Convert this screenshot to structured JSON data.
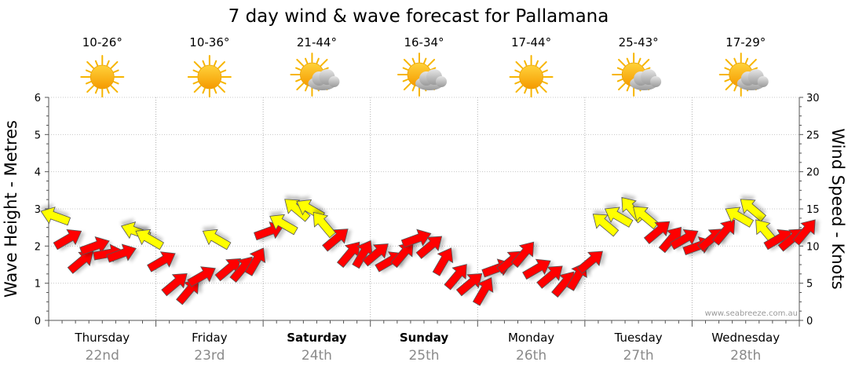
{
  "chart_data": {
    "type": "line",
    "title": "7 day wind & wave forecast for Pallamana",
    "ylabel_left": "Wave Height - Metres",
    "ylabel_right": "Wind Speed - Knots",
    "ylim_left": [
      0,
      6
    ],
    "ylim_right": [
      0,
      30
    ],
    "yticks_left": [
      "0",
      "1",
      "2",
      "3",
      "4",
      "5",
      "6"
    ],
    "yticks_right": [
      "0",
      "5",
      "10",
      "15",
      "20",
      "25",
      "30"
    ],
    "grid": true,
    "watermark": "www.seabreeze.com.au",
    "days": [
      {
        "day": "Thursday",
        "date": "22nd",
        "temp": "10-26°",
        "weather": "sunny",
        "bold": false
      },
      {
        "day": "Friday",
        "date": "23rd",
        "temp": "10-36°",
        "weather": "sunny",
        "bold": false
      },
      {
        "day": "Saturday",
        "date": "24th",
        "temp": "21-44°",
        "weather": "partly-cloudy",
        "bold": true
      },
      {
        "day": "Sunday",
        "date": "25th",
        "temp": "16-34°",
        "weather": "partly-cloudy",
        "bold": true
      },
      {
        "day": "Monday",
        "date": "26th",
        "temp": "17-44°",
        "weather": "sunny",
        "bold": false
      },
      {
        "day": "Tuesday",
        "date": "27th",
        "temp": "25-43°",
        "weather": "partly-cloudy",
        "bold": false
      },
      {
        "day": "Wednesday",
        "date": "28th",
        "temp": "17-29°",
        "weather": "partly-cloudy",
        "bold": false
      }
    ],
    "wind_series": {
      "name": "Wind",
      "x_hours": [
        0,
        3,
        6,
        9,
        12,
        15,
        18,
        21,
        24,
        27,
        30,
        33,
        36,
        39,
        42,
        45,
        48,
        51,
        54,
        57,
        60,
        63,
        66,
        69,
        72,
        75,
        78,
        81,
        84,
        87,
        90,
        93,
        96,
        99,
        102,
        105,
        108,
        111,
        114,
        117,
        120,
        123,
        126,
        129,
        132,
        135,
        138,
        141,
        144,
        147,
        150,
        153,
        156,
        159,
        162,
        165,
        168
      ],
      "knots": [
        14,
        11,
        8,
        10,
        9,
        9,
        12,
        11,
        8,
        5,
        4,
        6,
        11,
        7,
        7,
        8,
        12,
        13,
        15,
        15,
        13,
        11,
        9,
        9,
        9,
        8,
        9,
        11,
        10,
        8,
        6,
        5,
        4,
        7,
        8,
        9,
        7,
        6,
        5,
        6,
        8,
        13,
        14,
        15,
        14,
        12,
        11,
        11,
        10,
        11,
        12,
        14,
        15,
        12,
        11,
        11,
        12
      ],
      "colors": [
        "yellow",
        "red",
        "red",
        "red",
        "red",
        "red",
        "yellow",
        "yellow",
        "red",
        "red",
        "red",
        "red",
        "yellow",
        "red",
        "red",
        "red",
        "red",
        "yellow",
        "yellow",
        "yellow",
        "yellow",
        "red",
        "red",
        "red",
        "red",
        "red",
        "red",
        "red",
        "red",
        "red",
        "red",
        "red",
        "red",
        "red",
        "red",
        "red",
        "red",
        "red",
        "red",
        "red",
        "red",
        "yellow",
        "yellow",
        "yellow",
        "yellow",
        "red",
        "red",
        "red",
        "red",
        "red",
        "red",
        "yellow",
        "yellow",
        "yellow",
        "red",
        "red",
        "red"
      ],
      "direction_deg": [
        200,
        330,
        320,
        340,
        350,
        340,
        200,
        210,
        330,
        320,
        310,
        330,
        210,
        320,
        310,
        300,
        340,
        210,
        220,
        210,
        230,
        320,
        310,
        300,
        320,
        330,
        310,
        340,
        320,
        300,
        310,
        320,
        300,
        340,
        320,
        310,
        330,
        320,
        310,
        300,
        320,
        220,
        210,
        230,
        220,
        320,
        310,
        330,
        340,
        320,
        310,
        210,
        220,
        230,
        330,
        320,
        310
      ]
    }
  }
}
